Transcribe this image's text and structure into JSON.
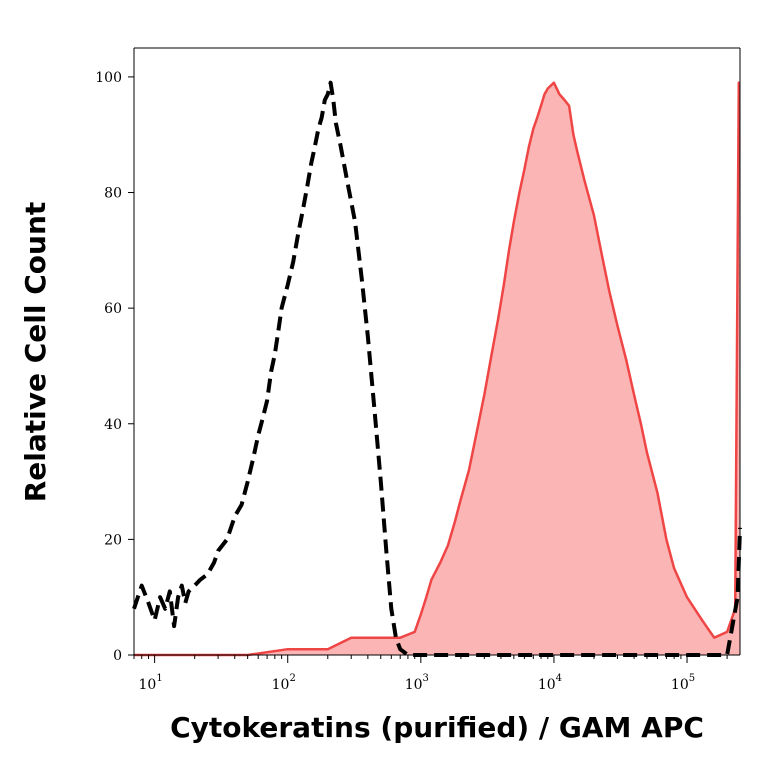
{
  "chart_data": {
    "type": "area",
    "xlabel": "Cytokeratins (purified) / GAM APC",
    "ylabel": "Relative Cell Count",
    "xscale": "log",
    "xlim": [
      7,
      250000
    ],
    "ylim": [
      0,
      105
    ],
    "grid": false,
    "legend": "none",
    "x_ticks": [
      {
        "base": "10",
        "exp": "1",
        "value": 10
      },
      {
        "base": "10",
        "exp": "2",
        "value": 100
      },
      {
        "base": "10",
        "exp": "3",
        "value": 1000
      },
      {
        "base": "10",
        "exp": "4",
        "value": 10000
      },
      {
        "base": "10",
        "exp": "5",
        "value": 100000
      }
    ],
    "y_ticks": [
      {
        "label": "0",
        "value": 0
      },
      {
        "label": "20",
        "value": 20
      },
      {
        "label": "40",
        "value": 40
      },
      {
        "label": "60",
        "value": 60
      },
      {
        "label": "80",
        "value": 80
      },
      {
        "label": "100",
        "value": 100
      }
    ],
    "series": [
      {
        "style": "dashed",
        "color": "#000000",
        "fill": "none",
        "points": [
          [
            7,
            8
          ],
          [
            8,
            12
          ],
          [
            9,
            9
          ],
          [
            10,
            6
          ],
          [
            11,
            10
          ],
          [
            12,
            8
          ],
          [
            13,
            11
          ],
          [
            14,
            5
          ],
          [
            15,
            10
          ],
          [
            16,
            12
          ],
          [
            17,
            9
          ],
          [
            18,
            11
          ],
          [
            20,
            12
          ],
          [
            22,
            13
          ],
          [
            25,
            14
          ],
          [
            28,
            16
          ],
          [
            30,
            18
          ],
          [
            35,
            20
          ],
          [
            40,
            24
          ],
          [
            45,
            26
          ],
          [
            50,
            30
          ],
          [
            55,
            34
          ],
          [
            60,
            38
          ],
          [
            65,
            41
          ],
          [
            70,
            44
          ],
          [
            75,
            49
          ],
          [
            80,
            52
          ],
          [
            85,
            56
          ],
          [
            90,
            60
          ],
          [
            100,
            64
          ],
          [
            110,
            68
          ],
          [
            120,
            73
          ],
          [
            130,
            77
          ],
          [
            140,
            81
          ],
          [
            150,
            85
          ],
          [
            160,
            88
          ],
          [
            170,
            91
          ],
          [
            180,
            93
          ],
          [
            190,
            96
          ],
          [
            200,
            97
          ],
          [
            210,
            99
          ],
          [
            220,
            96
          ],
          [
            230,
            92
          ],
          [
            250,
            88
          ],
          [
            280,
            82
          ],
          [
            320,
            75
          ],
          [
            360,
            65
          ],
          [
            400,
            55
          ],
          [
            450,
            42
          ],
          [
            500,
            30
          ],
          [
            550,
            18
          ],
          [
            600,
            8
          ],
          [
            650,
            3
          ],
          [
            700,
            1
          ],
          [
            800,
            0
          ],
          [
            1000,
            0
          ],
          [
            3000,
            0
          ],
          [
            10000,
            0
          ],
          [
            50000,
            0
          ],
          [
            200000,
            0
          ],
          [
            240000,
            10
          ],
          [
            250000,
            22
          ]
        ]
      },
      {
        "style": "solid",
        "color": "#f04545",
        "fill": "#fbb5b5",
        "points": [
          [
            7,
            0
          ],
          [
            50,
            0
          ],
          [
            100,
            1
          ],
          [
            200,
            1
          ],
          [
            300,
            3
          ],
          [
            500,
            3
          ],
          [
            700,
            3
          ],
          [
            900,
            4
          ],
          [
            1000,
            7
          ],
          [
            1100,
            10
          ],
          [
            1200,
            13
          ],
          [
            1400,
            16
          ],
          [
            1600,
            19
          ],
          [
            1800,
            23
          ],
          [
            2000,
            27
          ],
          [
            2300,
            32
          ],
          [
            2600,
            38
          ],
          [
            3000,
            45
          ],
          [
            3400,
            52
          ],
          [
            3800,
            58
          ],
          [
            4200,
            64
          ],
          [
            4600,
            70
          ],
          [
            5000,
            75
          ],
          [
            5500,
            80
          ],
          [
            6000,
            84
          ],
          [
            6500,
            88
          ],
          [
            7000,
            91
          ],
          [
            7500,
            93
          ],
          [
            8000,
            95
          ],
          [
            8500,
            97
          ],
          [
            9000,
            98
          ],
          [
            10000,
            99
          ],
          [
            11000,
            97
          ],
          [
            12000,
            96
          ],
          [
            13000,
            95
          ],
          [
            14000,
            90
          ],
          [
            15000,
            87
          ],
          [
            17000,
            82
          ],
          [
            20000,
            76
          ],
          [
            23000,
            69
          ],
          [
            26000,
            63
          ],
          [
            30000,
            57
          ],
          [
            35000,
            51
          ],
          [
            40000,
            45
          ],
          [
            45000,
            40
          ],
          [
            50000,
            35
          ],
          [
            60000,
            28
          ],
          [
            70000,
            20
          ],
          [
            80000,
            15
          ],
          [
            100000,
            10
          ],
          [
            130000,
            6
          ],
          [
            160000,
            3
          ],
          [
            200000,
            4
          ],
          [
            230000,
            8
          ],
          [
            245000,
            99
          ],
          [
            250000,
            99
          ]
        ]
      }
    ]
  }
}
